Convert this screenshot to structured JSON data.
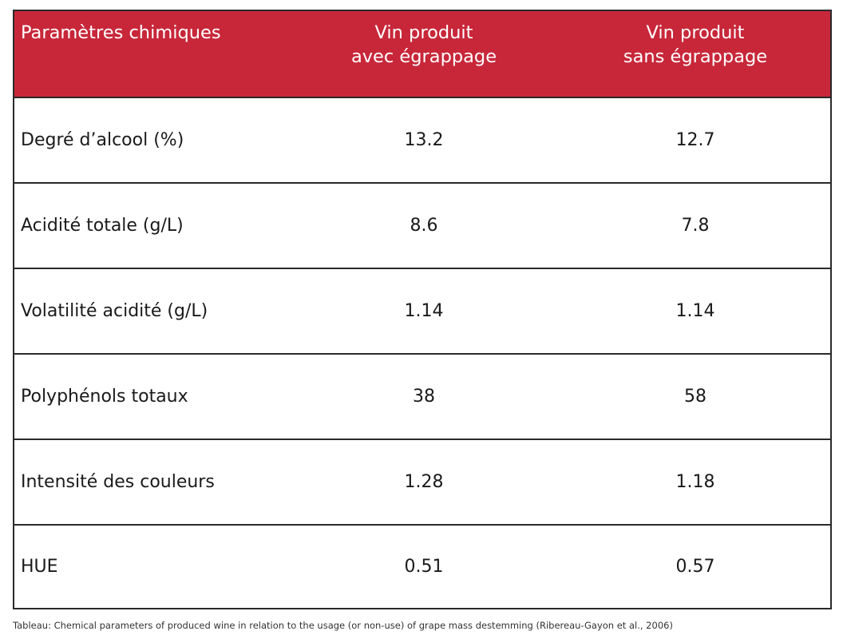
{
  "table": {
    "headers": [
      {
        "lines": [
          "Paramètres chimiques"
        ]
      },
      {
        "lines": [
          "Vin produit",
          "avec égrappage"
        ]
      },
      {
        "lines": [
          "Vin produit",
          "sans égrappage"
        ]
      }
    ],
    "rows": [
      {
        "parameter": "Degré d’alcool  (%)",
        "with_destemming": "13.2",
        "without_destemming": "12.7"
      },
      {
        "parameter": "Acidité totale (g/L)",
        "with_destemming": "8.6",
        "without_destemming": "7.8"
      },
      {
        "parameter": "Volatilité acidité (g/L)",
        "with_destemming": "1.14",
        "without_destemming": "1.14"
      },
      {
        "parameter": "Polyphénols totaux",
        "with_destemming": "38",
        "without_destemming": "58"
      },
      {
        "parameter": "Intensité des couleurs",
        "with_destemming": "1.28",
        "without_destemming": "1.18"
      },
      {
        "parameter": "HUE",
        "with_destemming": "0.51",
        "without_destemming": "0.57"
      }
    ]
  },
  "caption": "Tableau: Chemical parameters of produced wine in relation to the usage (or non-use) of grape mass destemming (Ribereau-Gayon et al., 2006)",
  "colors": {
    "header_background": "#c8273a",
    "header_text": "#ffffff",
    "border": "#2a2a2a"
  }
}
